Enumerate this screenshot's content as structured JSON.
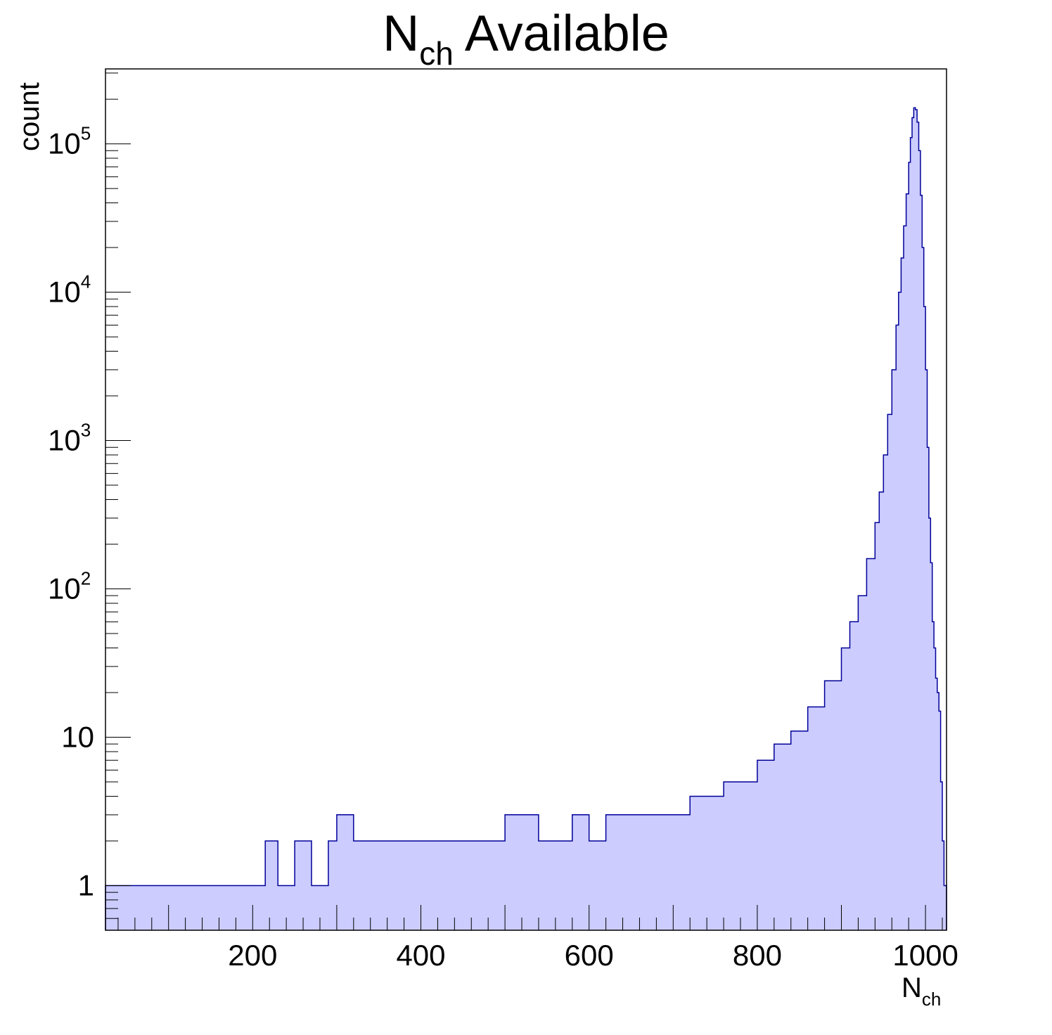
{
  "chart_data": {
    "type": "area",
    "title": {
      "main": "N",
      "sub": "ch",
      "rest": " Available"
    },
    "xlabel": {
      "main": "N",
      "sub": "ch"
    },
    "ylabel": "count",
    "xlim": [
      25,
      1025
    ],
    "ylim": [
      0.5,
      320000
    ],
    "y_log_scale": true,
    "grid": false,
    "x_ticks": [
      {
        "value": 200,
        "label": "200"
      },
      {
        "value": 400,
        "label": "400"
      },
      {
        "value": 600,
        "label": "600"
      },
      {
        "value": 800,
        "label": "800"
      },
      {
        "value": 1000,
        "label": "1000"
      }
    ],
    "y_ticks": [
      {
        "value": 1,
        "base": "1",
        "exp": ""
      },
      {
        "value": 10,
        "base": "10",
        "exp": ""
      },
      {
        "value": 100,
        "base": "10",
        "exp": "2"
      },
      {
        "value": 1000,
        "base": "10",
        "exp": "3"
      },
      {
        "value": 10000,
        "base": "10",
        "exp": "4"
      },
      {
        "value": 100000,
        "base": "10",
        "exp": "5"
      }
    ],
    "colors": {
      "fill": "#ccccff",
      "line": "#000099",
      "frame": "#000000"
    },
    "series": [
      {
        "x": [
          25,
          70,
          95,
          100,
          110,
          130,
          150,
          175,
          200,
          215,
          230,
          250,
          270,
          290,
          300,
          320,
          340,
          360,
          380,
          400,
          420,
          440,
          460,
          480,
          500,
          520,
          540,
          560,
          580,
          600,
          620,
          640,
          660,
          680,
          700,
          720,
          740,
          760,
          780,
          800,
          820,
          840,
          860,
          880,
          900,
          910,
          920,
          930,
          940,
          945,
          950,
          955,
          960,
          965,
          968,
          971,
          974,
          977,
          980,
          982,
          984,
          986,
          988,
          990,
          992,
          994,
          996,
          998,
          1000,
          1002,
          1004,
          1006,
          1008,
          1010,
          1012,
          1014,
          1016,
          1018,
          1020,
          1022,
          1025
        ],
        "values": [
          1,
          1,
          1,
          1,
          1,
          1,
          1,
          1,
          1,
          2,
          1,
          2,
          1,
          2,
          3,
          2,
          2,
          2,
          2,
          2,
          2,
          2,
          2,
          2,
          3,
          3,
          2,
          2,
          3,
          2,
          3,
          3,
          3,
          3,
          3,
          4,
          4,
          5,
          5,
          7,
          9,
          11,
          16,
          24,
          40,
          60,
          90,
          160,
          280,
          450,
          800,
          1500,
          3000,
          6000,
          10000,
          17000,
          28000,
          46000,
          75000,
          110000,
          150000,
          175000,
          170000,
          140000,
          90000,
          45000,
          20000,
          8000,
          3000,
          900,
          300,
          150,
          60,
          40,
          25,
          20,
          15,
          5,
          2,
          1,
          0.5
        ]
      }
    ]
  }
}
